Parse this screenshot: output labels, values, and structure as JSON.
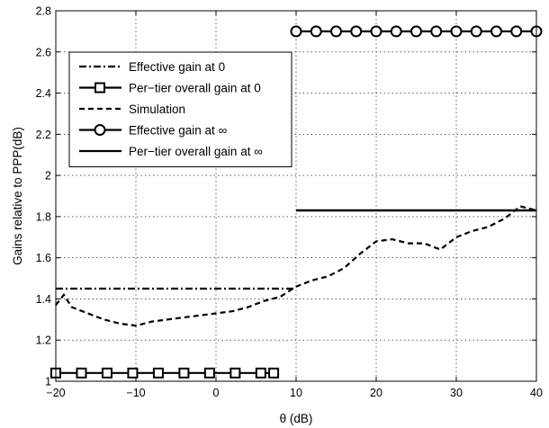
{
  "chart_data": {
    "type": "line",
    "xlabel": "θ (dB)",
    "ylabel": "Gains relative to PPP(dB)",
    "xlim": [
      -20,
      40
    ],
    "ylim": [
      1,
      2.8
    ],
    "xticks": [
      -20,
      -10,
      0,
      10,
      20,
      30,
      40
    ],
    "xtick_labels": [
      "−20",
      "−10",
      "0",
      "10",
      "20",
      "30",
      "40"
    ],
    "yticks": [
      1,
      1.2,
      1.4,
      1.6,
      1.8,
      2,
      2.2,
      2.4,
      2.6,
      2.8
    ],
    "ytick_labels": [
      "1",
      "1.2",
      "1.4",
      "1.6",
      "1.8",
      "2",
      "2.2",
      "2.4",
      "2.6",
      "2.8"
    ],
    "grid": true,
    "legend_position": "upper-left",
    "series": [
      {
        "name": "Effective gain at 0",
        "style": "dashdot",
        "marker": "none",
        "x": [
          -20,
          10
        ],
        "y": [
          1.45,
          1.45
        ]
      },
      {
        "name": "Per−tier overall gain at 0",
        "style": "solid",
        "marker": "square",
        "x": [
          -20,
          -16.8,
          -13.6,
          -10.4,
          -7.2,
          -4,
          -0.8,
          2.4,
          5.6,
          7.2
        ],
        "y": [
          1.04,
          1.04,
          1.04,
          1.04,
          1.04,
          1.04,
          1.04,
          1.04,
          1.04,
          1.04
        ]
      },
      {
        "name": "Simulation",
        "style": "dashed",
        "marker": "none",
        "x": [
          -20,
          -19,
          -18,
          -16,
          -14,
          -12,
          -10,
          -8,
          -6,
          -4,
          -2,
          0,
          2,
          4,
          6,
          8,
          10,
          12,
          14,
          16,
          18,
          20,
          22,
          24,
          26,
          28,
          30,
          32,
          34,
          36,
          38,
          40
        ],
        "y": [
          1.37,
          1.42,
          1.36,
          1.33,
          1.3,
          1.28,
          1.27,
          1.29,
          1.3,
          1.31,
          1.32,
          1.33,
          1.34,
          1.36,
          1.39,
          1.41,
          1.46,
          1.49,
          1.51,
          1.55,
          1.62,
          1.68,
          1.69,
          1.67,
          1.67,
          1.64,
          1.7,
          1.73,
          1.75,
          1.79,
          1.85,
          1.83
        ]
      },
      {
        "name": "Effective gain at ∞",
        "style": "solid",
        "marker": "circle",
        "x": [
          10,
          12.5,
          15,
          17.5,
          20,
          22.5,
          25,
          27.5,
          30,
          32.5,
          35,
          37.5,
          40
        ],
        "y": [
          2.7,
          2.7,
          2.7,
          2.7,
          2.7,
          2.7,
          2.7,
          2.7,
          2.7,
          2.7,
          2.7,
          2.7,
          2.7
        ]
      },
      {
        "name": "Per−tier overall gain at ∞",
        "style": "solid",
        "marker": "none",
        "x": [
          10,
          40
        ],
        "y": [
          1.83,
          1.83
        ]
      }
    ]
  }
}
